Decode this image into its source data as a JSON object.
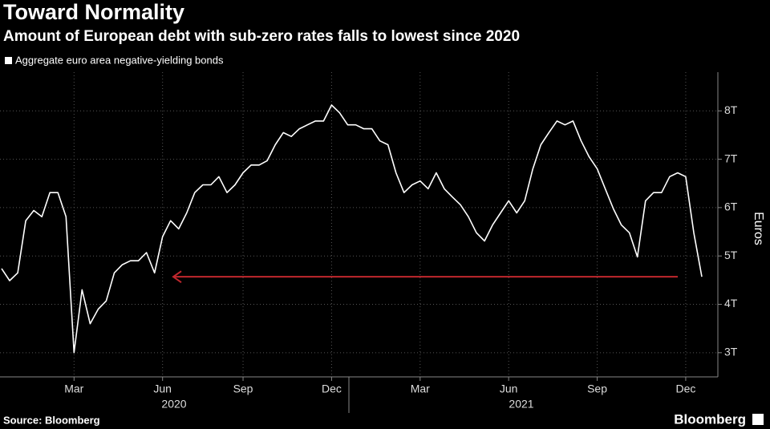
{
  "chart_data": {
    "type": "line",
    "title": "Toward Normality",
    "subtitle": "Amount of European debt with sub-zero rates falls to lowest since 2020",
    "source": "Source: Bloomberg",
    "brand": "Bloomberg",
    "y_axis_label": "Euros",
    "categories": [
      null,
      null,
      null,
      null,
      null,
      null,
      null,
      null,
      null,
      "Mar",
      null,
      null,
      null,
      null,
      null,
      null,
      null,
      null,
      null,
      null,
      "Jun",
      null,
      null,
      null,
      null,
      null,
      null,
      null,
      null,
      null,
      "Sep",
      null,
      null,
      null,
      null,
      null,
      null,
      null,
      null,
      null,
      null,
      "Dec",
      null,
      null,
      null,
      null,
      null,
      null,
      null,
      null,
      null,
      null,
      "Mar",
      null,
      null,
      null,
      null,
      null,
      null,
      null,
      null,
      null,
      null,
      "Jun",
      null,
      null,
      null,
      null,
      null,
      null,
      null,
      null,
      null,
      null,
      "Sep",
      null,
      null,
      null,
      null,
      null,
      null,
      null,
      null,
      null,
      null,
      "Dec",
      null,
      null
    ],
    "year_labels": [
      "2020",
      "2021"
    ],
    "series": [
      {
        "name": "Aggregate euro area negative-yielding bonds",
        "color": "#ffffff",
        "values": [
          4.74,
          4.49,
          4.65,
          5.73,
          5.94,
          5.81,
          6.31,
          6.31,
          5.81,
          3.0,
          4.3,
          3.6,
          3.9,
          4.07,
          4.65,
          4.82,
          4.9,
          4.9,
          5.07,
          4.65,
          5.4,
          5.73,
          5.56,
          5.89,
          6.31,
          6.47,
          6.47,
          6.64,
          6.31,
          6.47,
          6.72,
          6.88,
          6.88,
          6.97,
          7.3,
          7.55,
          7.47,
          7.63,
          7.71,
          7.79,
          7.79,
          8.12,
          7.96,
          7.71,
          7.71,
          7.63,
          7.63,
          7.38,
          7.3,
          6.72,
          6.31,
          6.47,
          6.55,
          6.39,
          6.72,
          6.39,
          6.22,
          6.06,
          5.81,
          5.48,
          5.31,
          5.64,
          5.89,
          6.14,
          5.89,
          6.14,
          6.8,
          7.3,
          7.55,
          7.79,
          7.71,
          7.79,
          7.38,
          7.05,
          6.8,
          6.39,
          5.98,
          5.64,
          5.48,
          4.98,
          6.14,
          6.31,
          6.31,
          6.64,
          6.72,
          6.64,
          5.48,
          4.57
        ]
      }
    ],
    "ylim": [
      2.5,
      8.8
    ],
    "yticks": [
      {
        "value": 3,
        "label": "3T"
      },
      {
        "value": 4,
        "label": "4T"
      },
      {
        "value": 5,
        "label": "5T"
      },
      {
        "value": 6,
        "label": "6T"
      },
      {
        "value": 7,
        "label": "7T"
      },
      {
        "value": 8,
        "label": "8T"
      }
    ],
    "grid": true,
    "annotation_color": "#c0272d"
  }
}
